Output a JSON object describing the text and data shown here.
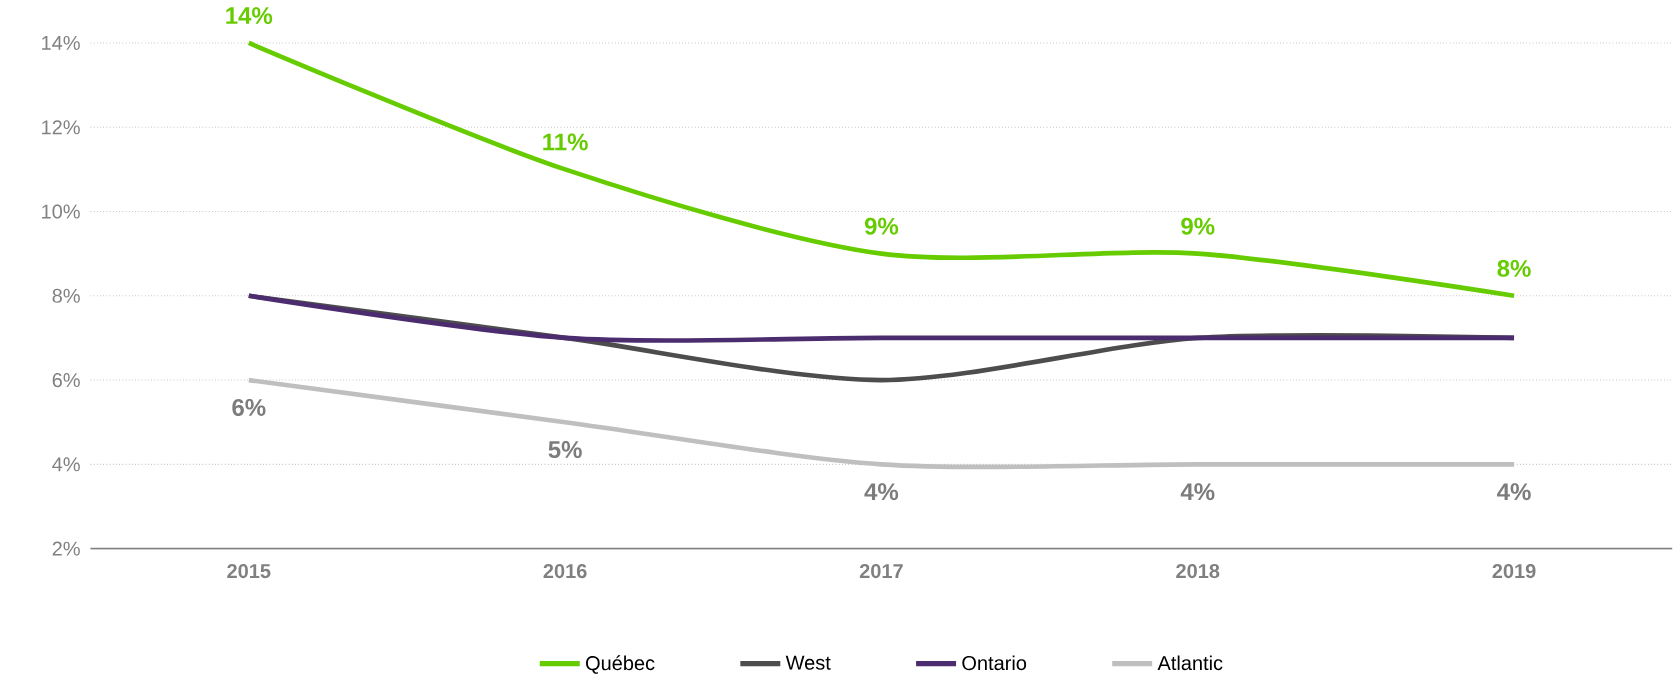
{
  "chart_data": {
    "type": "line",
    "categories": [
      "2015",
      "2016",
      "2017",
      "2018",
      "2019"
    ],
    "series": [
      {
        "name": "Québec",
        "color": "#66cc00",
        "values": [
          14,
          11,
          9,
          9,
          8
        ],
        "value_labels": [
          "14%",
          "11%",
          "9%",
          "9%",
          "8%"
        ]
      },
      {
        "name": "West",
        "color": "#4d4d4d",
        "values": [
          8,
          7,
          6,
          7,
          7
        ]
      },
      {
        "name": "Ontario",
        "color": "#4b2c6e",
        "values": [
          8,
          7,
          7,
          7,
          7
        ]
      },
      {
        "name": "Atlantic",
        "color": "#bfbfbf",
        "values": [
          6,
          5,
          4,
          4,
          4
        ],
        "value_labels": [
          "6%",
          "5%",
          "4%",
          "4%",
          "4%"
        ]
      }
    ],
    "ylim": [
      2,
      14
    ],
    "yticks": [
      {
        "value": 2,
        "label": "2%"
      },
      {
        "value": 4,
        "label": "4%"
      },
      {
        "value": 6,
        "label": "6%"
      },
      {
        "value": 8,
        "label": "8%"
      },
      {
        "value": 10,
        "label": "10%"
      },
      {
        "value": 12,
        "label": "12%"
      },
      {
        "value": 14,
        "label": "14%"
      }
    ],
    "grid": "y",
    "legend": "bottom",
    "marker": "none",
    "line_style": "solid"
  }
}
